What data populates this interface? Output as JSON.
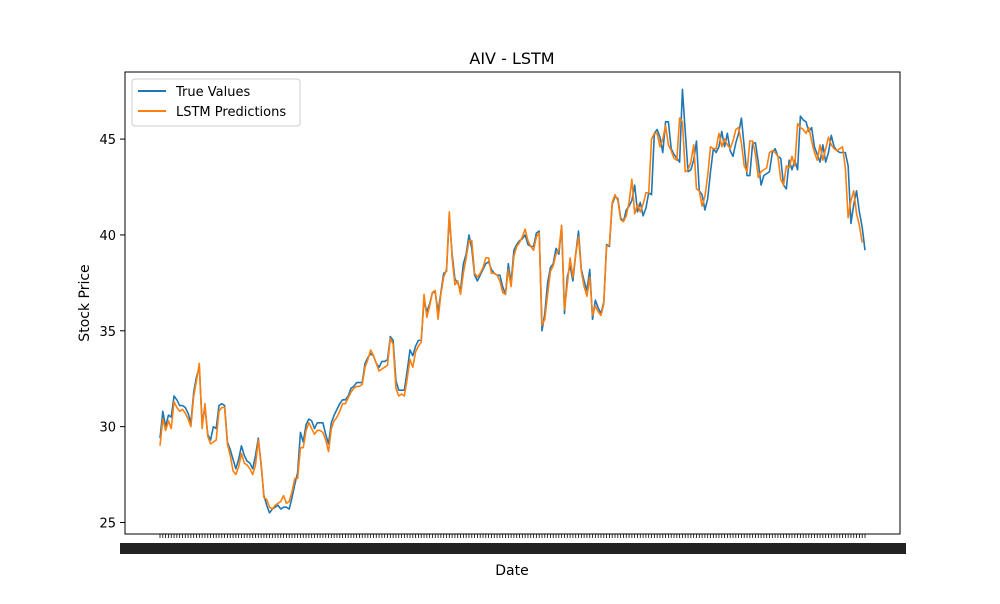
{
  "chart_data": {
    "type": "line",
    "title": "AIV - LSTM",
    "xlabel": "Date",
    "ylabel": "Stock Price",
    "ylim": [
      24.4,
      48.5
    ],
    "yticks": [
      25,
      30,
      35,
      40,
      45
    ],
    "grid": false,
    "legend_position": "top-left",
    "x_tick_labels_note": "dense overlapping date labels (illegible)",
    "series": [
      {
        "name": "True Values",
        "color": "#1f77b4",
        "values": [
          29.4,
          30.8,
          30.0,
          30.6,
          30.5,
          31.6,
          31.4,
          31.1,
          31.1,
          31.0,
          30.7,
          30.2,
          31.8,
          32.6,
          33.1,
          30.2,
          31.0,
          29.6,
          29.3,
          30.0,
          29.9,
          31.1,
          31.2,
          31.1,
          29.2,
          28.8,
          28.3,
          27.8,
          28.3,
          29.0,
          28.5,
          28.2,
          28.1,
          27.8,
          28.5,
          29.4,
          28.0,
          26.4,
          25.9,
          25.5,
          25.7,
          25.8,
          25.9,
          25.7,
          25.8,
          25.8,
          25.7,
          26.3,
          27.0,
          27.6,
          29.7,
          29.2,
          30.1,
          30.4,
          30.3,
          29.9,
          30.2,
          30.2,
          30.2,
          29.6,
          29.1,
          30.2,
          30.6,
          30.9,
          31.2,
          31.4,
          31.4,
          31.6,
          32.0,
          32.1,
          32.3,
          32.3,
          32.3,
          33.3,
          33.6,
          33.8,
          33.7,
          33.3,
          33.1,
          33.4,
          33.4,
          33.5,
          34.7,
          34.5,
          32.4,
          31.9,
          31.9,
          31.9,
          32.9,
          34.0,
          33.7,
          34.2,
          34.5,
          34.5,
          36.6,
          36.0,
          36.4,
          37.0,
          37.0,
          36.0,
          37.0,
          38.0,
          38.1,
          41.0,
          39.0,
          37.7,
          37.5,
          37.1,
          38.5,
          39.0,
          40.0,
          39.3,
          37.9,
          37.6,
          37.9,
          38.2,
          38.5,
          38.6,
          38.2,
          38.0,
          37.9,
          37.9,
          37.3,
          36.9,
          38.5,
          37.5,
          39.2,
          39.5,
          39.7,
          39.8,
          40.0,
          39.5,
          39.4,
          39.4,
          40.1,
          40.2,
          35.0,
          35.9,
          37.5,
          38.3,
          38.5,
          39.3,
          39.0,
          40.5,
          35.9,
          37.8,
          38.4,
          37.6,
          39.0,
          40.2,
          38.2,
          37.6,
          37.1,
          38.2,
          35.6,
          36.6,
          36.2,
          35.9,
          36.5,
          39.5,
          39.4,
          41.6,
          42.0,
          41.9,
          40.9,
          40.7,
          41.3,
          41.5,
          41.8,
          42.6,
          41.2,
          41.7,
          41.0,
          41.4,
          42.2,
          42.1,
          45.3,
          45.5,
          45.1,
          44.3,
          45.9,
          45.9,
          44.5,
          44.2,
          44.0,
          43.8,
          47.6,
          45.4,
          43.3,
          43.4,
          43.9,
          44.9,
          42.3,
          42.1,
          41.3,
          41.9,
          43.3,
          44.5,
          44.3,
          44.6,
          45.4,
          44.6,
          45.3,
          44.4,
          44.1,
          44.8,
          45.3,
          46.1,
          44.6,
          43.1,
          43.1,
          44.8,
          44.8,
          43.8,
          42.6,
          43.1,
          43.2,
          43.3,
          44.3,
          44.5,
          44.1,
          44.0,
          42.6,
          42.4,
          43.9,
          43.4,
          43.9,
          43.4,
          46.2,
          46.0,
          45.9,
          45.4,
          45.6,
          44.6,
          44.2,
          43.8,
          44.7,
          43.8,
          44.3,
          45.2,
          44.6,
          44.4,
          44.3,
          44.3,
          44.3,
          43.6,
          40.6,
          41.6,
          42.3,
          41.2,
          40.4,
          39.2
        ]
      },
      {
        "name": "LSTM Predictions",
        "color": "#ff7f0e",
        "values": [
          29.0,
          30.4,
          29.8,
          30.3,
          29.9,
          31.3,
          31.0,
          30.8,
          30.9,
          30.7,
          30.4,
          30.0,
          31.6,
          32.4,
          33.3,
          29.9,
          31.2,
          29.5,
          29.1,
          29.2,
          29.3,
          30.8,
          31.0,
          31.0,
          29.1,
          28.5,
          27.7,
          27.5,
          27.9,
          28.6,
          28.1,
          28.0,
          27.8,
          27.5,
          28.0,
          29.3,
          28.1,
          26.3,
          26.2,
          25.8,
          25.7,
          25.9,
          26.0,
          26.1,
          26.4,
          26.0,
          26.1,
          26.6,
          27.3,
          27.3,
          28.9,
          28.9,
          29.8,
          30.2,
          29.9,
          29.6,
          29.8,
          29.8,
          29.7,
          29.3,
          28.7,
          29.9,
          30.3,
          30.5,
          30.8,
          31.2,
          31.2,
          31.5,
          31.8,
          32.0,
          32.1,
          32.1,
          32.2,
          33.1,
          33.5,
          34.0,
          33.7,
          33.3,
          32.9,
          33.0,
          33.1,
          33.2,
          34.6,
          34.3,
          32.0,
          31.6,
          31.7,
          31.6,
          32.5,
          33.5,
          33.1,
          33.9,
          34.2,
          34.4,
          36.9,
          35.7,
          36.3,
          37.0,
          37.1,
          35.6,
          36.9,
          37.8,
          38.2,
          41.2,
          38.8,
          37.4,
          37.6,
          36.9,
          38.0,
          38.8,
          39.7,
          39.7,
          38.0,
          37.8,
          38.0,
          38.3,
          38.8,
          38.8,
          38.0,
          38.0,
          37.9,
          37.6,
          37.0,
          36.9,
          38.2,
          37.3,
          38.9,
          39.4,
          39.6,
          39.9,
          40.3,
          39.7,
          39.4,
          39.2,
          39.9,
          40.1,
          35.3,
          35.6,
          36.9,
          38.1,
          38.4,
          39.0,
          39.2,
          40.5,
          36.1,
          37.4,
          38.8,
          37.8,
          39.0,
          39.9,
          38.1,
          37.3,
          36.8,
          37.8,
          35.8,
          36.3,
          36.0,
          35.8,
          36.4,
          39.4,
          39.5,
          41.7,
          42.1,
          41.8,
          40.8,
          40.7,
          41.0,
          41.7,
          42.9,
          41.1,
          41.6,
          41.2,
          41.6,
          42.2,
          42.2,
          45.0,
          45.3,
          45.3,
          44.6,
          45.0,
          45.7,
          44.7,
          44.4,
          44.0,
          43.9,
          46.1,
          45.9,
          43.3,
          43.4,
          43.8,
          44.7,
          42.4,
          42.3,
          41.5,
          42.0,
          43.1,
          44.6,
          44.5,
          44.5,
          45.3,
          44.6,
          45.0,
          44.7,
          44.5,
          44.9,
          45.5,
          45.6,
          44.8,
          43.6,
          43.3,
          44.9,
          44.9,
          44.2,
          43.0,
          43.3,
          43.4,
          43.5,
          44.3,
          44.4,
          44.3,
          44.1,
          42.9,
          42.6,
          43.6,
          43.5,
          44.1,
          43.6,
          45.8,
          45.6,
          45.5,
          45.3,
          45.6,
          44.9,
          44.3,
          43.9,
          44.7,
          43.9,
          44.5,
          45.1,
          44.7,
          44.5,
          44.4,
          44.5,
          44.6,
          43.5,
          40.9,
          41.8,
          42.3,
          41.1,
          40.5,
          39.6
        ]
      }
    ]
  }
}
